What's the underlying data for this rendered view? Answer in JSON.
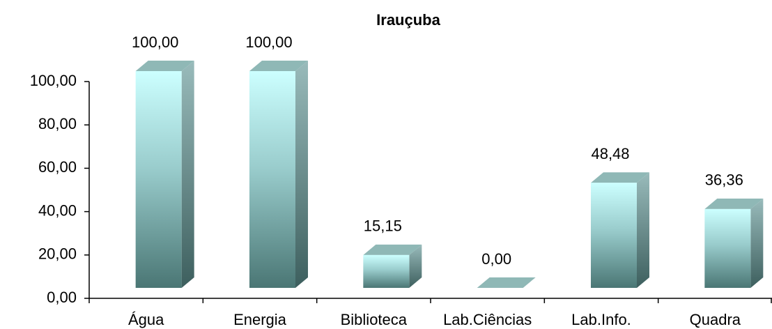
{
  "chart_data": {
    "type": "bar3d",
    "title": "Irauçuba",
    "categories": [
      "Água",
      "Energia",
      "Biblioteca",
      "Lab.Ciências",
      "Lab.Info.",
      "Quadra"
    ],
    "values": [
      100,
      100,
      15.15,
      0,
      48.48,
      36.36
    ],
    "value_labels": [
      "100,00",
      "100,00",
      "15,15",
      "0,00",
      "48,48",
      "36,36"
    ],
    "ylim": [
      0,
      100
    ],
    "yticks": [
      {
        "value": 0,
        "label": "0,00"
      },
      {
        "value": 20,
        "label": "20,00"
      },
      {
        "value": 40,
        "label": "40,00"
      },
      {
        "value": 60,
        "label": "60,00"
      },
      {
        "value": 80,
        "label": "80,00"
      },
      {
        "value": 100,
        "label": "100,00"
      }
    ]
  }
}
